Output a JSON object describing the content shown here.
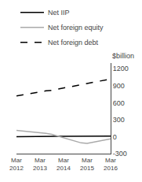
{
  "chart_data": {
    "type": "line",
    "y_label": "$billion",
    "categories": [
      "Mar\n2012",
      null,
      null,
      null,
      "Mar\n2013",
      null,
      null,
      null,
      "Mar\n2014",
      null,
      null,
      null,
      "Mar\n2015",
      null,
      null,
      null,
      "Mar\n2016"
    ],
    "series": [
      {
        "name": "Net IIP",
        "color": "#000000",
        "line_style": "solid",
        "values": [
          0,
          2,
          2,
          5,
          5,
          5,
          5,
          5,
          5,
          5,
          5,
          5,
          5,
          5,
          5,
          5,
          10
        ]
      },
      {
        "name": "Net foreign equity",
        "color": "#aaaaaa",
        "line_style": "solid",
        "values": [
          110,
          100,
          95,
          85,
          70,
          60,
          40,
          10,
          -30,
          -60,
          -90,
          -110,
          -120,
          -100,
          -80,
          -60,
          -40
        ]
      },
      {
        "name": "Net foreign debt",
        "color": "#000000",
        "line_style": "dashed",
        "values": [
          720,
          740,
          755,
          770,
          790,
          810,
          820,
          840,
          855,
          870,
          890,
          910,
          935,
          960,
          980,
          1000,
          1020
        ]
      }
    ],
    "ylim": [
      -300,
      1300
    ],
    "yticks": [
      -300,
      0,
      300,
      600,
      900,
      1200
    ],
    "grid": false,
    "legend": "top"
  }
}
